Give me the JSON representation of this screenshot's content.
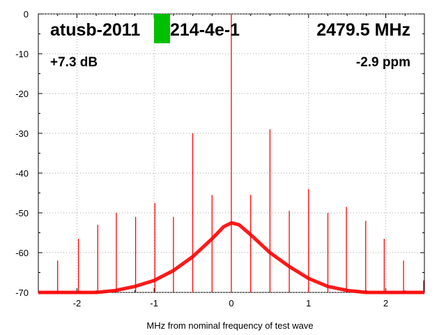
{
  "chart_data": {
    "type": "line",
    "title": "",
    "xlabel": "MHz from nominal frequency of test wave",
    "ylabel": "",
    "xlim": [
      -2.5,
      2.5
    ],
    "ylim": [
      -70,
      0
    ],
    "x_ticks": [
      -2,
      -1,
      0,
      1,
      2
    ],
    "x_tick_labels": [
      "-2",
      "-1",
      "0",
      "1",
      "2"
    ],
    "y_ticks": [
      0,
      -10,
      -20,
      -30,
      -40,
      -50,
      -60,
      -70
    ],
    "y_tick_labels": [
      "0",
      "-10",
      "-20",
      "-30",
      "-40",
      "-50",
      "-60",
      "-70"
    ],
    "grid": true,
    "series_color": "#ff0000",
    "device_color": "#00c000",
    "annotations": {
      "device": "atusb-2011",
      "device_suffix": "214-4e-1",
      "frequency": "2479.5 MHz",
      "level": "+7.3 dB",
      "offset": "-2.9 ppm"
    },
    "noise_floor": {
      "x": [
        -2.5,
        -2.0,
        -1.75,
        -1.5,
        -1.25,
        -1.0,
        -0.75,
        -0.5,
        -0.25,
        -0.1,
        0.0,
        0.1,
        0.25,
        0.5,
        0.75,
        1.0,
        1.25,
        1.5,
        1.75,
        2.0,
        2.25,
        2.5
      ],
      "y": [
        -70,
        -70,
        -70,
        -69.5,
        -68.5,
        -67,
        -64.5,
        -61,
        -56.5,
        -53.5,
        -52.5,
        -53,
        -55.5,
        -60,
        -63.5,
        -66.5,
        -68.5,
        -69.5,
        -70,
        -70,
        -70,
        -70
      ]
    },
    "spurs": {
      "x": [
        -2.25,
        -1.98,
        -1.73,
        -1.49,
        -1.24,
        -0.99,
        -0.75,
        -0.5,
        -0.25,
        0.0,
        0.25,
        0.5,
        0.75,
        1.0,
        1.25,
        1.49,
        1.74,
        1.98,
        2.23,
        2.49
      ],
      "y": [
        -62,
        -56.5,
        -53,
        -50,
        -51,
        -47.5,
        -51,
        -30,
        -45.5,
        0,
        -45.5,
        -29,
        -49.5,
        -44,
        -50,
        -48.5,
        -52,
        -56.5,
        -62,
        -67
      ]
    }
  }
}
